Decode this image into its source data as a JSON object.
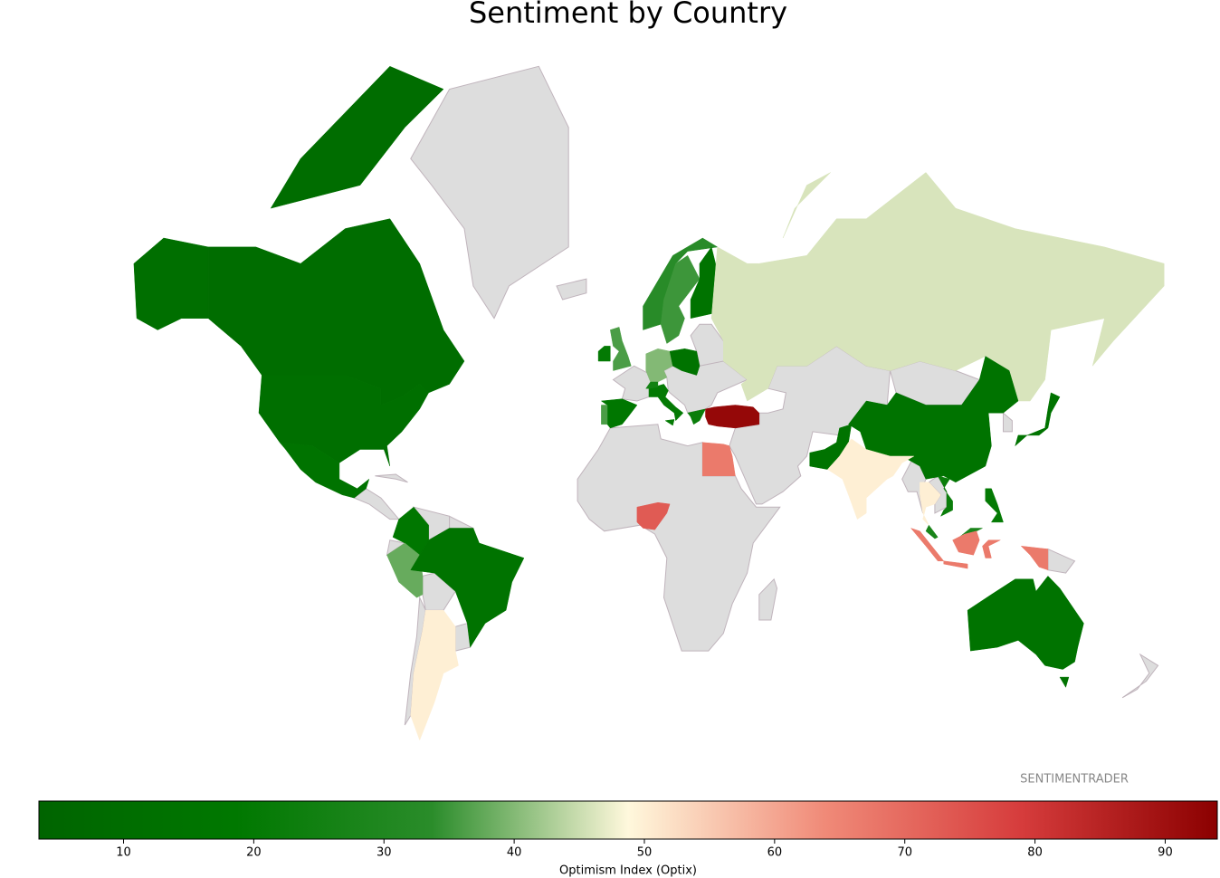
{
  "chart_data": {
    "type": "choropleth",
    "title": "Sentiment by Country",
    "values": [
      10,
      12,
      15,
      18,
      38,
      50,
      15,
      36,
      20,
      33,
      35,
      15,
      18,
      36,
      40,
      15,
      20,
      25,
      22,
      92,
      46,
      15,
      15,
      15,
      50,
      50,
      22,
      28,
      20,
      67,
      15,
      67,
      73
    ],
    "colormap": [
      "#006400",
      "#007800",
      "#2a8c2a",
      "#fff8dc",
      "#f08a78",
      "#d63c3c",
      "#8b0000"
    ],
    "colorbar": {
      "label": "Optimism Index (Optix)",
      "lim": [
        3.5,
        94
      ],
      "ticks": [
        10,
        20,
        30,
        40,
        50,
        60,
        70,
        80,
        90
      ]
    },
    "watermark": "SENTIMENTRADER"
  }
}
